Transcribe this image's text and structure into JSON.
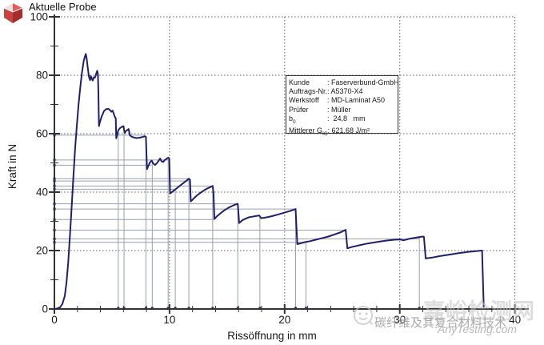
{
  "header": {
    "title": "Aktuelle Probe",
    "icon": "red-cube-icon"
  },
  "info_box": {
    "rows": [
      {
        "label": "Kunde",
        "sub": "",
        "value": "Faserverbund-GmbH"
      },
      {
        "label": "Auftrags-Nr.",
        "sub": "",
        "value": "A5370-X4"
      },
      {
        "label": "Werkstoff",
        "sub": "",
        "value": "MD-Laminat A50"
      },
      {
        "label": "Prüfer",
        "sub": "",
        "value": "Müller"
      },
      {
        "label": "b",
        "sub": "0",
        "value": " 24,8   mm"
      },
      {
        "label": "Mittlerer G",
        "sub": "IC",
        "value": "621,68 J/m²"
      }
    ]
  },
  "chart_data": {
    "type": "line",
    "title": "Aktuelle Probe",
    "xlabel": "Rissöffnung in mm",
    "ylabel": "Kraft in N",
    "xlim": [
      0,
      40
    ],
    "ylim": [
      0,
      100
    ],
    "x_major": 10,
    "x_minor": 2,
    "y_major": 20,
    "y_minor": 10,
    "grid": true,
    "colors": {
      "curve": "#20206a",
      "marker_line": "#98a0ac",
      "grid_line": "#606060",
      "axis": "#333333"
    },
    "series": [
      {
        "name": "Kraft",
        "points": [
          [
            0,
            0
          ],
          [
            0.25,
            0.2
          ],
          [
            0.5,
            0.6
          ],
          [
            0.7,
            1.8
          ],
          [
            0.9,
            4.5
          ],
          [
            1.05,
            9
          ],
          [
            1.2,
            16
          ],
          [
            1.35,
            25
          ],
          [
            1.5,
            35
          ],
          [
            1.65,
            45
          ],
          [
            1.8,
            55
          ],
          [
            1.95,
            63
          ],
          [
            2.1,
            70
          ],
          [
            2.25,
            76
          ],
          [
            2.4,
            81
          ],
          [
            2.55,
            85
          ],
          [
            2.68,
            86.8
          ],
          [
            2.73,
            87.3
          ],
          [
            2.8,
            85.8
          ],
          [
            2.9,
            82.5
          ],
          [
            3.0,
            79.5
          ],
          [
            3.1,
            78.3
          ],
          [
            3.17,
            79.7
          ],
          [
            3.25,
            78.8
          ],
          [
            3.33,
            78.2
          ],
          [
            3.42,
            79.3
          ],
          [
            3.52,
            79.2
          ],
          [
            3.62,
            80.4
          ],
          [
            3.72,
            81.5
          ],
          [
            3.78,
            80.5
          ],
          [
            3.82,
            74
          ],
          [
            3.87,
            62.6
          ],
          [
            3.95,
            63.9
          ],
          [
            4.1,
            65.8
          ],
          [
            4.3,
            67.7
          ],
          [
            4.5,
            68.4
          ],
          [
            4.7,
            68.5
          ],
          [
            4.85,
            68.0
          ],
          [
            4.95,
            67.5
          ],
          [
            5.05,
            67.9
          ],
          [
            5.15,
            66.9
          ],
          [
            5.25,
            65.8
          ],
          [
            5.33,
            65.2
          ],
          [
            5.37,
            58.4
          ],
          [
            5.45,
            59.6
          ],
          [
            5.55,
            61.2
          ],
          [
            5.7,
            61.9
          ],
          [
            5.85,
            62.3
          ],
          [
            6.0,
            62.6
          ],
          [
            6.1,
            60.3
          ],
          [
            6.22,
            60.9
          ],
          [
            6.35,
            61.3
          ],
          [
            6.45,
            61.6
          ],
          [
            6.55,
            59.5
          ],
          [
            6.7,
            59.0
          ],
          [
            6.9,
            58.7
          ],
          [
            7.1,
            58.5
          ],
          [
            7.35,
            58.6
          ],
          [
            7.6,
            58.8
          ],
          [
            7.82,
            59.1
          ],
          [
            7.95,
            58.9
          ],
          [
            8.0,
            53
          ],
          [
            8.05,
            47.9
          ],
          [
            8.15,
            48.9
          ],
          [
            8.3,
            50.2
          ],
          [
            8.45,
            50.8
          ],
          [
            8.6,
            49.7
          ],
          [
            8.75,
            49.3
          ],
          [
            8.9,
            49.9
          ],
          [
            9.05,
            50.7
          ],
          [
            9.18,
            51.5
          ],
          [
            9.3,
            50.6
          ],
          [
            9.45,
            50.3
          ],
          [
            9.6,
            51.0
          ],
          [
            9.75,
            51.4
          ],
          [
            9.88,
            51.8
          ],
          [
            9.98,
            51.5
          ],
          [
            10.05,
            39.5
          ],
          [
            10.3,
            40.3
          ],
          [
            10.6,
            41.2
          ],
          [
            10.9,
            42.2
          ],
          [
            11.2,
            43.1
          ],
          [
            11.5,
            44.0
          ],
          [
            11.68,
            44.6
          ],
          [
            11.78,
            44.2
          ],
          [
            11.85,
            36.8
          ],
          [
            12.1,
            37.8
          ],
          [
            12.4,
            38.9
          ],
          [
            12.7,
            39.8
          ],
          [
            13.0,
            40.6
          ],
          [
            13.3,
            41.3
          ],
          [
            13.6,
            41.8
          ],
          [
            13.75,
            42.1
          ],
          [
            13.82,
            39.5
          ],
          [
            13.9,
            30.8
          ],
          [
            14.2,
            32.0
          ],
          [
            14.5,
            33.0
          ],
          [
            14.8,
            33.9
          ],
          [
            15.1,
            34.6
          ],
          [
            15.4,
            35.2
          ],
          [
            15.7,
            35.7
          ],
          [
            15.93,
            36.0
          ],
          [
            16.05,
            29.4
          ],
          [
            16.3,
            30.3
          ],
          [
            16.6,
            30.9
          ],
          [
            16.9,
            31.4
          ],
          [
            17.2,
            31.6
          ],
          [
            17.5,
            31.8
          ],
          [
            17.8,
            32.0
          ],
          [
            17.95,
            31.1
          ],
          [
            18.2,
            31.2
          ],
          [
            18.6,
            31.5
          ],
          [
            19.0,
            31.9
          ],
          [
            19.5,
            32.4
          ],
          [
            20.0,
            33.0
          ],
          [
            20.5,
            33.6
          ],
          [
            20.95,
            34.2
          ],
          [
            21.1,
            22.2
          ],
          [
            21.4,
            22.5
          ],
          [
            21.8,
            22.9
          ],
          [
            22.2,
            23.2
          ],
          [
            22.7,
            23.7
          ],
          [
            23.2,
            24.2
          ],
          [
            23.8,
            24.8
          ],
          [
            24.4,
            25.6
          ],
          [
            24.9,
            26.3
          ],
          [
            25.3,
            27.1
          ],
          [
            25.45,
            20.8
          ],
          [
            25.9,
            21.3
          ],
          [
            26.5,
            21.8
          ],
          [
            27.2,
            22.4
          ],
          [
            28.0,
            22.9
          ],
          [
            28.8,
            23.4
          ],
          [
            29.5,
            23.7
          ],
          [
            30.0,
            23.8
          ],
          [
            30.35,
            23.5
          ],
          [
            30.8,
            24.0
          ],
          [
            31.4,
            24.4
          ],
          [
            32.0,
            24.8
          ],
          [
            32.1,
            24.7
          ],
          [
            32.25,
            17.3
          ],
          [
            32.8,
            17.6
          ],
          [
            33.5,
            18.1
          ],
          [
            34.3,
            18.6
          ],
          [
            35.1,
            19.1
          ],
          [
            35.9,
            19.5
          ],
          [
            36.6,
            19.8
          ],
          [
            37.15,
            20.0
          ],
          [
            37.3,
            0.4
          ]
        ]
      }
    ],
    "marker_h_lines": [
      {
        "f": 59.5,
        "x": 7.95
      },
      {
        "f": 51.0,
        "x": 9.88
      },
      {
        "f": 49.2,
        "x": 8.45
      },
      {
        "f": 44.6,
        "x": 11.68
      },
      {
        "f": 43.8,
        "x": 11.68
      },
      {
        "f": 42.1,
        "x": 13.75
      },
      {
        "f": 41.0,
        "x": 10.6
      },
      {
        "f": 36.0,
        "x": 15.93
      },
      {
        "f": 34.2,
        "x": 20.95
      },
      {
        "f": 30.6,
        "x": 13.9
      },
      {
        "f": 27.0,
        "x": 25.3
      },
      {
        "f": 24.0,
        "x": 31.7
      },
      {
        "f": 22.8,
        "x": 21.85
      }
    ],
    "marker_v_lines": [
      {
        "x": 5.55,
        "f": 61.2
      },
      {
        "x": 6.05,
        "f": 62.6
      },
      {
        "x": 7.95,
        "f": 59.0
      },
      {
        "x": 8.5,
        "f": 50.8
      },
      {
        "x": 9.88,
        "f": 51.8
      },
      {
        "x": 10.5,
        "f": 41.0
      },
      {
        "x": 11.68,
        "f": 44.6
      },
      {
        "x": 13.75,
        "f": 42.1
      },
      {
        "x": 15.93,
        "f": 36.0
      },
      {
        "x": 17.85,
        "f": 32.0
      },
      {
        "x": 20.95,
        "f": 34.2
      },
      {
        "x": 21.85,
        "f": 22.9
      },
      {
        "x": 31.7,
        "f": 24.5
      }
    ]
  },
  "watermark": {
    "big": "嘉峪检测网",
    "line": "碳纤维及其复合材料技术",
    "anytesting": "AnyTesting.com",
    "logo": "anytesting-logo-icon"
  }
}
